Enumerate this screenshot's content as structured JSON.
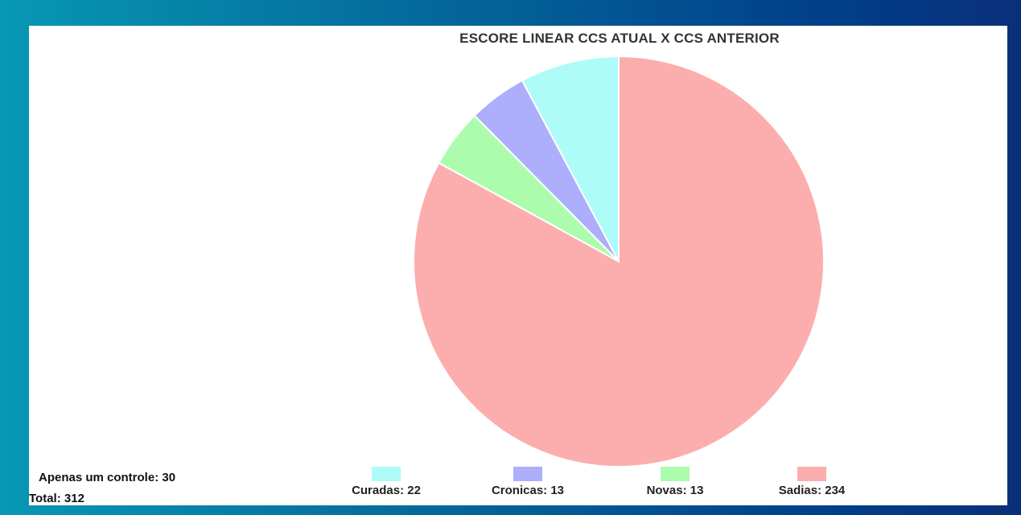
{
  "chart_data": {
    "type": "pie",
    "title": "ESCORE LINEAR CCS ATUAL X CCS ANTERIOR",
    "slices": [
      {
        "label": "Curadas: 22",
        "value": 22,
        "color": "#adfcf8"
      },
      {
        "label": "Cronicas: 13",
        "value": 13,
        "color": "#adaffc"
      },
      {
        "label": "Novas: 13",
        "value": 13,
        "color": "#adfcad"
      },
      {
        "label": "Sadias: 234",
        "value": 234,
        "color": "#fcadad"
      }
    ],
    "legend_position": "bottom",
    "notes": {
      "apenas_um_controle": "Apenas um controle: 30",
      "total": "Total: 312"
    }
  }
}
